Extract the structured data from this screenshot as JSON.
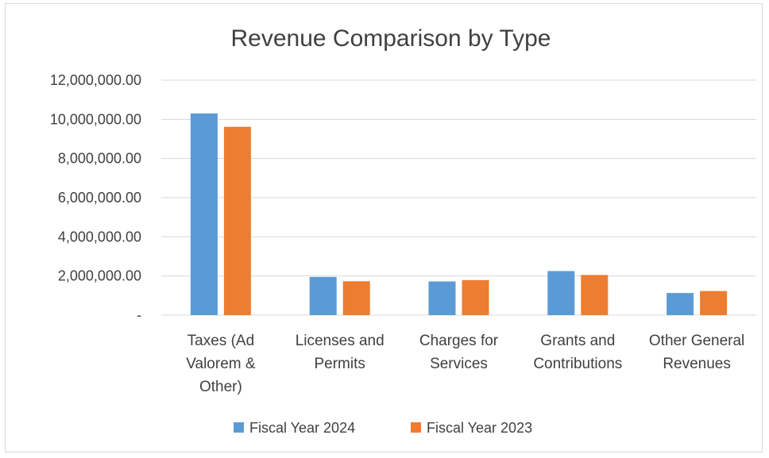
{
  "chart_data": {
    "type": "bar",
    "title": "Revenue Comparison by Type",
    "categories": [
      [
        "Taxes (Ad",
        "Valorem &",
        "Other)"
      ],
      [
        "Licenses and",
        "Permits"
      ],
      [
        "Charges for",
        "Services"
      ],
      [
        "Grants and",
        "Contributions"
      ],
      [
        "Other General",
        "Revenues"
      ]
    ],
    "series": [
      {
        "name": "Fiscal Year 2024",
        "color": "#5b9bd5",
        "values": [
          10300000,
          1950000,
          1720000,
          2250000,
          1130000
        ]
      },
      {
        "name": "Fiscal Year 2023",
        "color": "#ed7d31",
        "values": [
          9620000,
          1730000,
          1790000,
          2050000,
          1230000
        ]
      }
    ],
    "ylim": [
      0,
      12000000
    ],
    "yticks": [
      0,
      2000000,
      4000000,
      6000000,
      8000000,
      10000000,
      12000000
    ],
    "ytick_labels": [
      "-",
      "2,000,000.00",
      "4,000,000.00",
      "6,000,000.00",
      "8,000,000.00",
      "10,000,000.00",
      "12,000,000.00"
    ],
    "grid": true,
    "legend_position": "bottom"
  }
}
